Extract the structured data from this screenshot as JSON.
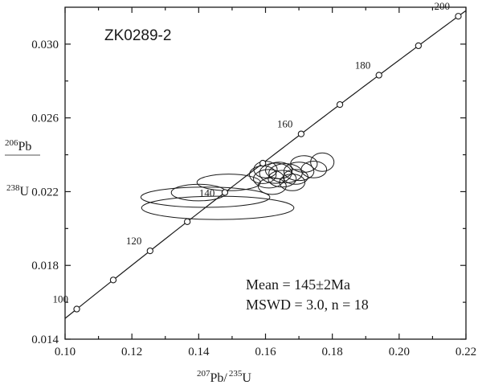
{
  "chart_data": {
    "type": "scatter",
    "title": "ZK0289-2",
    "xlabel": {
      "pre_sup": "207",
      "main": "Pb/",
      "mid_sup": "235",
      "post": "U"
    },
    "ylabel": {
      "num_sup": "206",
      "num": "Pb",
      "den_sup": "238",
      "den": "U"
    },
    "xlim": [
      0.1,
      0.22
    ],
    "ylim": [
      0.014,
      0.032
    ],
    "xticks": [
      0.1,
      0.12,
      0.14,
      0.16,
      0.18,
      0.2,
      0.22
    ],
    "xtick_labels": [
      "0.10",
      "0.12",
      "0.14",
      "0.16",
      "0.18",
      "0.20",
      "0.22"
    ],
    "yticks": [
      0.014,
      0.018,
      0.022,
      0.026,
      0.03
    ],
    "ytick_labels": [
      "0.014",
      "0.018",
      "0.022",
      "0.026",
      "0.030"
    ],
    "concordia_ages": [
      100,
      110,
      120,
      130,
      140,
      150,
      160,
      170,
      180,
      190,
      200
    ],
    "age_labels": [
      {
        "age": 100,
        "text": "100",
        "pos": "above-left"
      },
      {
        "age": 120,
        "text": "120",
        "pos": "above-left"
      },
      {
        "age": 140,
        "text": "140",
        "pos": "left"
      },
      {
        "age": 160,
        "text": "160",
        "pos": "above-left"
      },
      {
        "age": 180,
        "text": "180",
        "pos": "above-left"
      },
      {
        "age": 200,
        "text": "200",
        "pos": "above-left"
      }
    ],
    "ellipses": [
      {
        "cx": 0.1457,
        "cy": 0.02112,
        "rx": 0.0228,
        "ry": 0.00063
      },
      {
        "cx": 0.142,
        "cy": 0.0217,
        "rx": 0.0193,
        "ry": 0.00055
      },
      {
        "cx": 0.14,
        "cy": 0.02195,
        "rx": 0.0082,
        "ry": 0.00045
      },
      {
        "cx": 0.149,
        "cy": 0.0225,
        "rx": 0.0095,
        "ry": 0.00045
      },
      {
        "cx": 0.1592,
        "cy": 0.02292,
        "rx": 0.004,
        "ry": 0.00048
      },
      {
        "cx": 0.163,
        "cy": 0.023,
        "rx": 0.0048,
        "ry": 0.00055
      },
      {
        "cx": 0.161,
        "cy": 0.0227,
        "rx": 0.0046,
        "ry": 0.0005
      },
      {
        "cx": 0.166,
        "cy": 0.023,
        "rx": 0.005,
        "ry": 0.00052
      },
      {
        "cx": 0.165,
        "cy": 0.0227,
        "rx": 0.0042,
        "ry": 0.00045
      },
      {
        "cx": 0.162,
        "cy": 0.0223,
        "rx": 0.0042,
        "ry": 0.00045
      },
      {
        "cx": 0.168,
        "cy": 0.0225,
        "rx": 0.0038,
        "ry": 0.00045
      },
      {
        "cx": 0.17,
        "cy": 0.0231,
        "rx": 0.0045,
        "ry": 0.0005
      },
      {
        "cx": 0.1715,
        "cy": 0.0235,
        "rx": 0.004,
        "ry": 0.00045
      },
      {
        "cx": 0.1745,
        "cy": 0.0232,
        "rx": 0.0038,
        "ry": 0.00045
      },
      {
        "cx": 0.177,
        "cy": 0.0236,
        "rx": 0.0035,
        "ry": 0.0005
      },
      {
        "cx": 0.169,
        "cy": 0.0228,
        "rx": 0.0037,
        "ry": 0.0004
      },
      {
        "cx": 0.164,
        "cy": 0.02315,
        "rx": 0.004,
        "ry": 0.00045
      },
      {
        "cx": 0.16,
        "cy": 0.0232,
        "rx": 0.0035,
        "ry": 0.00045
      }
    ],
    "stats": {
      "mean": "Mean = 145±2Ma",
      "mswd": "MSWD = 3.0,  n = 18"
    }
  }
}
